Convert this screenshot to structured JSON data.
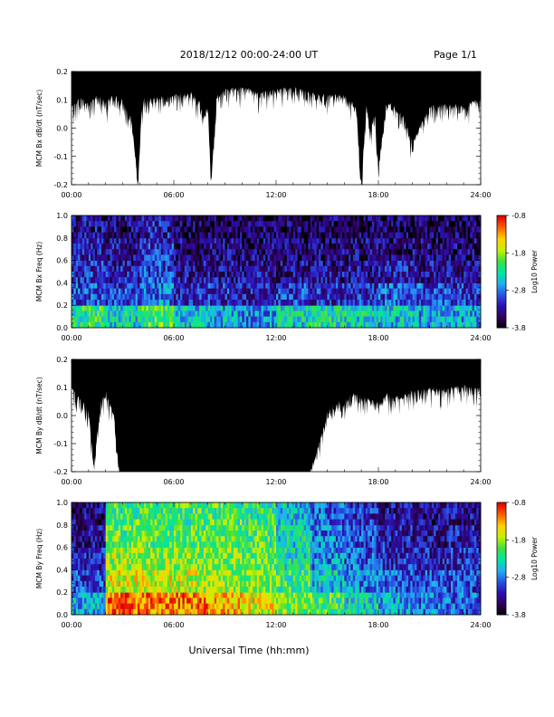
{
  "header": {
    "title": "2018/12/12  00:00-24:00 UT",
    "page": "Page 1/1"
  },
  "chart_data": [
    {
      "type": "area",
      "title": "",
      "ylabel": "MCM Bx dB/dt (nT/sec)",
      "xlabel": "",
      "x_ticks": [
        "00:00",
        "06:00",
        "12:00",
        "18:00",
        "24:00"
      ],
      "y_ticks": [
        "-0.2",
        "-0.1",
        "0.0",
        "0.1",
        "0.2"
      ],
      "xlim": [
        0,
        24
      ],
      "ylim": [
        -0.2,
        0.2
      ],
      "grid": false,
      "series": [
        {
          "x": [
            0,
            0.5,
            1,
            1.5,
            2,
            2.5,
            3,
            3.5,
            3.7,
            3.9,
            4.1,
            4.3,
            4.5,
            5,
            5.5,
            6,
            6.5,
            7,
            7.5,
            7.8,
            8.0,
            8.2,
            8.5,
            9,
            10,
            11,
            12,
            13,
            14,
            15,
            16,
            16.7,
            17,
            17.3,
            17.5,
            17.8,
            18,
            18.5,
            19,
            19.5,
            20,
            21,
            22,
            23,
            24
          ],
          "y": [
            0.08,
            0.11,
            0.09,
            0.12,
            0.1,
            0.12,
            0.1,
            0.04,
            -0.06,
            -0.2,
            0.06,
            0.12,
            0.1,
            0.12,
            0.11,
            0.12,
            0.13,
            0.13,
            0.1,
            0.05,
            0.09,
            -0.19,
            0.12,
            0.14,
            0.15,
            0.13,
            0.14,
            0.15,
            0.13,
            0.12,
            0.12,
            0.08,
            -0.19,
            0.09,
            0.0,
            0.06,
            -0.13,
            0.1,
            0.08,
            0.04,
            -0.05,
            0.08,
            0.09,
            0.08,
            0.11
          ]
        }
      ]
    },
    {
      "type": "heatmap",
      "title": "",
      "ylabel": "MCM Bx Freq (Hz)",
      "xlabel": "",
      "x_ticks": [
        "00:00",
        "06:00",
        "12:00",
        "18:00",
        "24:00"
      ],
      "y_ticks": [
        "0.0",
        "0.2",
        "0.4",
        "0.6",
        "0.8",
        "1.0"
      ],
      "xlim": [
        0,
        24
      ],
      "ylim": [
        0,
        1
      ],
      "colorbar": {
        "label": "Log10 Power",
        "ticks": [
          "-0.8",
          "-1.8",
          "-2.8",
          "-3.8"
        ],
        "range": [
          -3.8,
          -0.8
        ]
      },
      "x_hours": [
        0,
        2,
        4,
        6,
        8,
        10,
        12,
        14,
        16,
        18,
        20,
        22,
        24
      ],
      "x_hours_note": "",
      "freq_hz": [
        0.0,
        0.2,
        0.4,
        0.6,
        0.8,
        1.0
      ],
      "log10_power": [
        [
          -2.2,
          -2.4,
          -2.1,
          -2.5,
          -2.6,
          -2.7,
          -2.4,
          -2.3,
          -2.4,
          -2.5,
          -2.6,
          -2.6
        ],
        [
          -2.9,
          -3.0,
          -2.8,
          -3.1,
          -3.1,
          -3.2,
          -3.0,
          -3.1,
          -3.1,
          -2.9,
          -3.0,
          -3.1
        ],
        [
          -3.1,
          -3.2,
          -3.0,
          -3.3,
          -3.3,
          -3.3,
          -3.3,
          -3.3,
          -3.3,
          -3.2,
          -3.3,
          -3.3
        ],
        [
          -3.2,
          -3.3,
          -3.1,
          -3.4,
          -3.4,
          -3.4,
          -3.4,
          -3.4,
          -3.4,
          -3.4,
          -3.4,
          -3.4
        ],
        [
          -3.3,
          -3.4,
          -3.2,
          -3.5,
          -3.5,
          -3.5,
          -3.5,
          -3.5,
          -3.5,
          -3.5,
          -3.5,
          -3.5
        ]
      ]
    },
    {
      "type": "area",
      "title": "",
      "ylabel": "MCM By dB/dt (nT/sec)",
      "xlabel": "",
      "x_ticks": [
        "00:00",
        "06:00",
        "12:00",
        "18:00",
        "24:00"
      ],
      "y_ticks": [
        "-0.2",
        "-0.1",
        "0.0",
        "0.1",
        "0.2"
      ],
      "xlim": [
        0,
        24
      ],
      "ylim": [
        -0.2,
        0.2
      ],
      "grid": false,
      "series": [
        {
          "x": [
            0,
            0.5,
            1,
            1.3,
            1.7,
            2,
            2.5,
            2.8,
            3,
            4,
            5,
            6,
            7,
            8,
            9,
            10,
            11,
            12,
            13,
            13.5,
            14,
            14.5,
            15,
            15.5,
            16,
            16.5,
            17,
            17.5,
            18,
            18.5,
            19,
            19.5,
            20,
            21,
            22,
            23,
            24
          ],
          "y": [
            0.1,
            0.07,
            0.02,
            -0.18,
            0.05,
            0.09,
            0.0,
            -0.2,
            -0.2,
            -0.2,
            -0.2,
            -0.2,
            -0.2,
            -0.2,
            -0.2,
            -0.2,
            -0.2,
            -0.2,
            -0.2,
            -0.2,
            -0.2,
            -0.1,
            0.02,
            0.05,
            0.06,
            0.08,
            0.07,
            0.06,
            0.05,
            0.08,
            0.07,
            0.08,
            0.09,
            0.1,
            0.1,
            0.11,
            0.1
          ]
        }
      ]
    },
    {
      "type": "heatmap",
      "title": "",
      "ylabel": "MCM By Freq (Hz)",
      "xlabel": "Universal Time (hh:mm)",
      "x_ticks": [
        "00:00",
        "06:00",
        "12:00",
        "18:00",
        "24:00"
      ],
      "y_ticks": [
        "0.0",
        "0.2",
        "0.4",
        "0.6",
        "0.8",
        "1.0"
      ],
      "xlim": [
        0,
        24
      ],
      "ylim": [
        0,
        1
      ],
      "colorbar": {
        "label": "Log10 Power",
        "ticks": [
          "-0.8",
          "-1.8",
          "-2.8",
          "-3.8"
        ],
        "range": [
          -3.8,
          -0.8
        ]
      },
      "x_hours": [
        0,
        2,
        4,
        6,
        8,
        10,
        12,
        14,
        16,
        18,
        20,
        22,
        24
      ],
      "freq_hz": [
        0.0,
        0.2,
        0.4,
        0.6,
        0.8,
        1.0
      ],
      "log10_power": [
        [
          -2.6,
          -1.1,
          -1.2,
          -1.2,
          -1.4,
          -1.6,
          -1.9,
          -2.1,
          -2.4,
          -2.6,
          -2.8,
          -2.9
        ],
        [
          -3.0,
          -1.6,
          -1.6,
          -1.7,
          -1.8,
          -1.9,
          -2.1,
          -2.5,
          -2.7,
          -2.9,
          -3.0,
          -3.0
        ],
        [
          -3.2,
          -1.8,
          -1.8,
          -1.9,
          -1.9,
          -2.0,
          -2.3,
          -2.7,
          -2.9,
          -3.1,
          -3.2,
          -3.1
        ],
        [
          -3.3,
          -2.0,
          -2.0,
          -2.0,
          -2.0,
          -2.1,
          -2.4,
          -2.8,
          -3.0,
          -3.2,
          -3.3,
          -3.2
        ],
        [
          -3.4,
          -2.1,
          -2.1,
          -2.1,
          -2.1,
          -2.2,
          -2.5,
          -2.9,
          -3.1,
          -3.3,
          -3.4,
          -3.3
        ]
      ]
    }
  ],
  "colors": {
    "trace": "#000000",
    "colormap": [
      "#000000",
      "#30005a",
      "#2a0fb0",
      "#2a52e6",
      "#20b0f0",
      "#00e6a0",
      "#40e040",
      "#c8f000",
      "#ffd000",
      "#ff6000",
      "#e00000"
    ]
  }
}
